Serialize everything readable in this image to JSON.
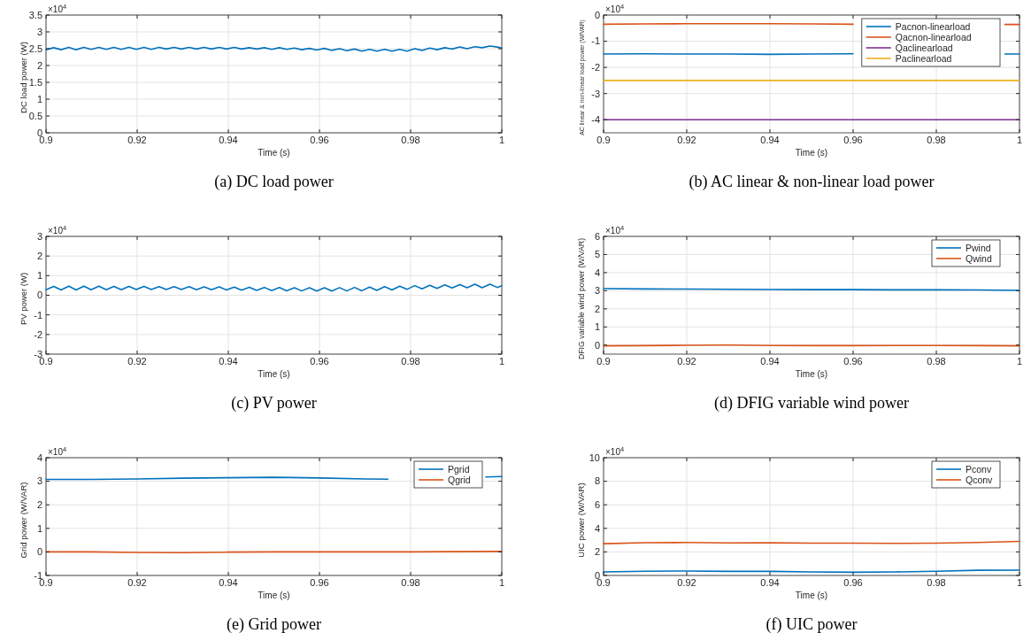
{
  "chart_data": [
    {
      "type": "line",
      "title": "(a) DC load power",
      "xlabel": "Time (s)",
      "ylabel": "DC load power (W)",
      "annotations": [
        "×10$^{4}$"
      ],
      "xlim": [
        0.9,
        1
      ],
      "xticks": [
        0.9,
        0.92,
        0.94,
        0.96,
        0.98,
        1
      ],
      "ylim": [
        0,
        3.5
      ],
      "yticks": [
        0,
        0.5,
        1,
        1.5,
        2,
        2.5,
        3,
        3.5
      ],
      "grid": true,
      "x": [
        0.9,
        0.9017,
        0.9033,
        0.905,
        0.9066,
        0.9083,
        0.9099,
        0.9116,
        0.9132,
        0.9149,
        0.9165,
        0.9182,
        0.9198,
        0.9215,
        0.9231,
        0.9248,
        0.9264,
        0.9281,
        0.9297,
        0.9314,
        0.933,
        0.9347,
        0.9363,
        0.938,
        0.9396,
        0.9413,
        0.9429,
        0.9446,
        0.9462,
        0.9479,
        0.9495,
        0.9512,
        0.9528,
        0.9545,
        0.9561,
        0.9578,
        0.9594,
        0.9611,
        0.9627,
        0.9644,
        0.966,
        0.9677,
        0.9693,
        0.971,
        0.9726,
        0.9743,
        0.9759,
        0.9776,
        0.9792,
        0.9809,
        0.9825,
        0.9842,
        0.9858,
        0.9875,
        0.9891,
        0.9908,
        0.9924,
        0.9941,
        0.9957,
        0.9974,
        0.999,
        1
      ],
      "series": [
        {
          "color": "#0072bd",
          "values": [
            2.47,
            2.53,
            2.47,
            2.54,
            2.47,
            2.54,
            2.48,
            2.54,
            2.48,
            2.54,
            2.48,
            2.54,
            2.48,
            2.54,
            2.48,
            2.54,
            2.49,
            2.54,
            2.49,
            2.54,
            2.49,
            2.54,
            2.49,
            2.54,
            2.49,
            2.54,
            2.49,
            2.53,
            2.49,
            2.53,
            2.48,
            2.53,
            2.48,
            2.52,
            2.47,
            2.51,
            2.46,
            2.51,
            2.45,
            2.5,
            2.44,
            2.49,
            2.43,
            2.48,
            2.43,
            2.48,
            2.43,
            2.48,
            2.43,
            2.5,
            2.45,
            2.52,
            2.47,
            2.53,
            2.49,
            2.55,
            2.5,
            2.56,
            2.53,
            2.58,
            2.55,
            2.52
          ]
        }
      ]
    },
    {
      "type": "line",
      "title": "(b) AC linear & non-linear load power",
      "xlabel": "Time (s)",
      "ylabel": "AC linear & non-linear load power (W/VAR)",
      "annotations": [
        "×10$^{4}$"
      ],
      "xlim": [
        0.9,
        1
      ],
      "xticks": [
        0.9,
        0.92,
        0.94,
        0.96,
        0.98,
        1
      ],
      "ylim": [
        -4.5,
        0
      ],
      "yticks": [
        -4,
        -3,
        -2,
        -1,
        0
      ],
      "grid": true,
      "legend": "top right",
      "x": [
        0.9,
        0.91,
        0.92,
        0.93,
        0.94,
        0.95,
        0.96,
        0.97,
        0.98,
        0.99,
        1
      ],
      "series": [
        {
          "name": "Pacnon-linearload",
          "color": "#0072bd",
          "x": [
            0.9,
            0.91,
            0.92,
            0.93,
            0.94,
            0.95,
            0.96,
            0.98,
            0.9965,
            1
          ],
          "values": [
            -1.49,
            -1.48,
            -1.49,
            -1.49,
            -1.5,
            -1.49,
            -1.48,
            null,
            -1.49,
            -1.49
          ]
        },
        {
          "name": "Qacnon-linearload",
          "color": "#d95319",
          "x": [
            0.9,
            0.91,
            0.92,
            0.93,
            0.94,
            0.95,
            0.96,
            0.98,
            0.9965,
            1
          ],
          "values": [
            -0.35,
            -0.34,
            -0.33,
            -0.33,
            -0.33,
            -0.34,
            -0.35,
            null,
            -0.36,
            -0.36
          ]
        },
        {
          "name": "Qaclinearload",
          "color": "#7e2f8e",
          "values": [
            -4,
            -4,
            -4,
            -4,
            -4,
            -4,
            -4,
            -4,
            -4,
            -4,
            -4
          ]
        },
        {
          "name": "Paclinearload",
          "color": "#edb120",
          "values": [
            -2.5,
            -2.5,
            -2.5,
            -2.5,
            -2.5,
            -2.5,
            -2.5,
            -2.5,
            -2.5,
            -2.5,
            -2.5
          ]
        }
      ]
    },
    {
      "type": "line",
      "title": "(c) PV power",
      "xlabel": "Time (s)",
      "ylabel": "PV power (W)",
      "annotations": [
        "×10$^{4}$"
      ],
      "xlim": [
        0.9,
        1
      ],
      "xticks": [
        0.9,
        0.92,
        0.94,
        0.96,
        0.98,
        1
      ],
      "ylim": [
        -3,
        3
      ],
      "yticks": [
        -3,
        -2,
        -1,
        0,
        1,
        2,
        3
      ],
      "grid": true,
      "x": [
        0.9,
        0.9017,
        0.9033,
        0.905,
        0.9066,
        0.9083,
        0.9099,
        0.9116,
        0.9132,
        0.9149,
        0.9165,
        0.9182,
        0.9198,
        0.9215,
        0.9231,
        0.9248,
        0.9264,
        0.9281,
        0.9297,
        0.9314,
        0.933,
        0.9347,
        0.9363,
        0.938,
        0.9396,
        0.9413,
        0.9429,
        0.9446,
        0.9462,
        0.9479,
        0.9495,
        0.9512,
        0.9528,
        0.9545,
        0.9561,
        0.9578,
        0.9594,
        0.9611,
        0.9627,
        0.9644,
        0.966,
        0.9677,
        0.9693,
        0.971,
        0.9726,
        0.9743,
        0.9759,
        0.9776,
        0.9792,
        0.9809,
        0.9825,
        0.9842,
        0.9858,
        0.9875,
        0.9891,
        0.9908,
        0.9924,
        0.9941,
        0.9957,
        0.9974,
        0.999,
        1
      ],
      "series": [
        {
          "color": "#0072bd",
          "values": [
            0.28,
            0.45,
            0.27,
            0.46,
            0.27,
            0.46,
            0.28,
            0.46,
            0.28,
            0.45,
            0.28,
            0.45,
            0.29,
            0.45,
            0.29,
            0.44,
            0.29,
            0.44,
            0.29,
            0.44,
            0.28,
            0.43,
            0.28,
            0.43,
            0.27,
            0.42,
            0.26,
            0.41,
            0.25,
            0.4,
            0.24,
            0.39,
            0.23,
            0.38,
            0.22,
            0.38,
            0.21,
            0.38,
            0.21,
            0.39,
            0.22,
            0.4,
            0.23,
            0.42,
            0.25,
            0.44,
            0.27,
            0.46,
            0.3,
            0.49,
            0.33,
            0.51,
            0.35,
            0.53,
            0.37,
            0.54,
            0.38,
            0.56,
            0.38,
            0.56,
            0.4,
            0.48
          ]
        }
      ]
    },
    {
      "type": "line",
      "title": "(d) DFIG variable wind power",
      "xlabel": "Time (s)",
      "ylabel": "DFIG variable wind power (W/VAR)",
      "annotations": [
        "×10$^{4}$"
      ],
      "xlim": [
        0.9,
        1
      ],
      "xticks": [
        0.9,
        0.92,
        0.94,
        0.96,
        0.98,
        1
      ],
      "ylim": [
        -0.5,
        6
      ],
      "yticks": [
        0,
        1,
        2,
        3,
        4,
        5,
        6
      ],
      "grid": true,
      "legend": "top right",
      "x": [
        0.9,
        0.91,
        0.92,
        0.93,
        0.94,
        0.95,
        0.96,
        0.97,
        0.98,
        0.99,
        1
      ],
      "series": [
        {
          "name": "Pwind",
          "color": "#0072bd",
          "values": [
            3.12,
            3.1,
            3.09,
            3.08,
            3.07,
            3.06,
            3.06,
            3.05,
            3.05,
            3.04,
            3.02
          ]
        },
        {
          "name": "Qwind",
          "color": "#d95319",
          "values": [
            -0.04,
            -0.03,
            -0.01,
            0,
            -0.02,
            -0.03,
            -0.03,
            -0.02,
            -0.02,
            -0.03,
            -0.04
          ]
        }
      ]
    },
    {
      "type": "line",
      "title": "(e) Grid power",
      "xlabel": "Time (s)",
      "ylabel": "Grid power (W/VAR)",
      "annotations": [
        "×10$^{4}$"
      ],
      "xlim": [
        0.9,
        1
      ],
      "xticks": [
        0.9,
        0.92,
        0.94,
        0.96,
        0.98,
        1
      ],
      "ylim": [
        -1,
        4
      ],
      "yticks": [
        -1,
        0,
        1,
        2,
        3,
        4
      ],
      "grid": true,
      "legend": "top right",
      "x": [
        0.9,
        0.91,
        0.92,
        0.93,
        0.94,
        0.95,
        0.96,
        0.97,
        0.98,
        0.99,
        1
      ],
      "series": [
        {
          "name": "Pgrid",
          "color": "#0072bd",
          "x": [
            0.9,
            0.91,
            0.92,
            0.93,
            0.94,
            0.95,
            0.96,
            0.97,
            0.975,
            0.985,
            0.9965,
            1
          ],
          "values": [
            3.08,
            3.08,
            3.1,
            3.13,
            3.15,
            3.17,
            3.14,
            3.1,
            3.09,
            null,
            3.18,
            3.2
          ]
        },
        {
          "name": "Qgrid",
          "color": "#d95319",
          "values": [
            0,
            0,
            -0.02,
            -0.03,
            -0.01,
            0,
            0,
            0,
            0,
            0.01,
            0.02
          ]
        }
      ]
    },
    {
      "type": "line",
      "title": "(f) UIC power",
      "xlabel": "Time (s)",
      "ylabel": "UIC power (W/VAR)",
      "annotations": [
        "×10$^{4}$"
      ],
      "xlim": [
        0.9,
        1
      ],
      "xticks": [
        0.9,
        0.92,
        0.94,
        0.96,
        0.98,
        1
      ],
      "ylim": [
        0,
        10
      ],
      "yticks": [
        0,
        2,
        4,
        6,
        8,
        10
      ],
      "grid": true,
      "legend": "top right",
      "x": [
        0.9,
        0.91,
        0.92,
        0.93,
        0.94,
        0.95,
        0.96,
        0.97,
        0.98,
        0.99,
        1
      ],
      "series": [
        {
          "name": "Pconv",
          "color": "#0072bd",
          "values": [
            0.3,
            0.36,
            0.38,
            0.35,
            0.35,
            0.3,
            0.27,
            0.3,
            0.36,
            0.44,
            0.45
          ]
        },
        {
          "name": "Qconv",
          "color": "#d95319",
          "values": [
            2.7,
            2.78,
            2.8,
            2.76,
            2.77,
            2.75,
            2.74,
            2.72,
            2.75,
            2.8,
            2.9
          ]
        }
      ]
    }
  ]
}
